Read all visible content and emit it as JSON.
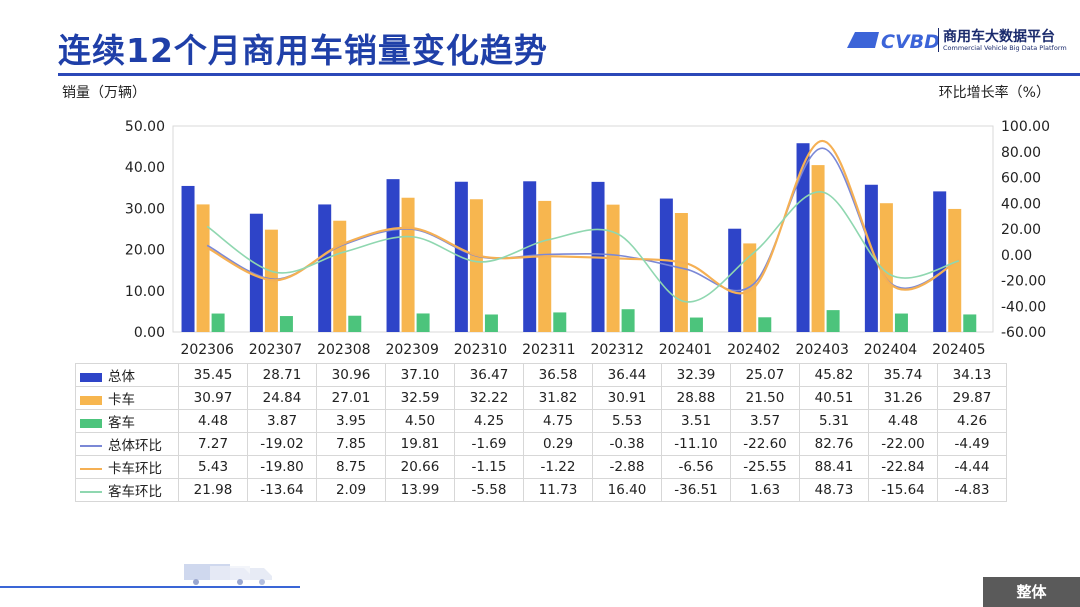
{
  "header": {
    "title": "连续12个月商用车销量变化趋势",
    "logo_text": "商用车大数据平台",
    "logo_sub": "Commercial Vehicle Big Data Platform",
    "logo_mark": "CVBD"
  },
  "footer": {
    "tag": "整体"
  },
  "colors": {
    "total": "#2e44c8",
    "truck": "#f7b64f",
    "bus": "#4cc47c",
    "total_mom": "#7b88d6",
    "truck_mom": "#f5b054",
    "bus_mom": "#8fd7b0"
  },
  "chart_data": {
    "type": "bar",
    "ylabel": "销量（万辆）",
    "y2label": "环比增长率（%）",
    "ylim": [
      0,
      50
    ],
    "y2lim": [
      -60,
      100
    ],
    "yticks": [
      "0.00",
      "10.00",
      "20.00",
      "30.00",
      "40.00",
      "50.00"
    ],
    "y2ticks": [
      "-60.00",
      "-40.00",
      "-20.00",
      "0.00",
      "20.00",
      "40.00",
      "60.00",
      "80.00",
      "100.00"
    ],
    "grid": false,
    "categories": [
      "202306",
      "202307",
      "202308",
      "202309",
      "202310",
      "202311",
      "202312",
      "202401",
      "202402",
      "202403",
      "202404",
      "202405"
    ],
    "series": [
      {
        "name": "总体",
        "kind": "bar",
        "axis": "left",
        "values": [
          35.45,
          28.71,
          30.96,
          37.1,
          36.47,
          36.58,
          36.44,
          32.39,
          25.07,
          45.82,
          35.74,
          34.13
        ],
        "labels": [
          "35.45",
          "28.71",
          "30.96",
          "37.10",
          "36.47",
          "36.58",
          "36.44",
          "32.39",
          "25.07",
          "45.82",
          "35.74",
          "34.13"
        ]
      },
      {
        "name": "卡车",
        "kind": "bar",
        "axis": "left",
        "values": [
          30.97,
          24.84,
          27.01,
          32.59,
          32.22,
          31.82,
          30.91,
          28.88,
          21.5,
          40.51,
          31.26,
          29.87
        ],
        "labels": [
          "30.97",
          "24.84",
          "27.01",
          "32.59",
          "32.22",
          "31.82",
          "30.91",
          "28.88",
          "21.50",
          "40.51",
          "31.26",
          "29.87"
        ]
      },
      {
        "name": "客车",
        "kind": "bar",
        "axis": "left",
        "values": [
          4.48,
          3.87,
          3.95,
          4.5,
          4.25,
          4.75,
          5.53,
          3.51,
          3.57,
          5.31,
          4.48,
          4.26
        ],
        "labels": [
          "4.48",
          "3.87",
          "3.95",
          "4.50",
          "4.25",
          "4.75",
          "5.53",
          "3.51",
          "3.57",
          "5.31",
          "4.48",
          "4.26"
        ]
      },
      {
        "name": "总体环比",
        "kind": "line",
        "axis": "right",
        "values": [
          7.27,
          -19.02,
          7.85,
          19.81,
          -1.69,
          0.29,
          -0.38,
          -11.1,
          -22.6,
          82.76,
          -22.0,
          -4.49
        ],
        "labels": [
          "7.27",
          "-19.02",
          "7.85",
          "19.81",
          "-1.69",
          "0.29",
          "-0.38",
          "-11.10",
          "-22.60",
          "82.76",
          "-22.00",
          "-4.49"
        ]
      },
      {
        "name": "卡车环比",
        "kind": "line",
        "axis": "right",
        "values": [
          5.43,
          -19.8,
          8.75,
          20.66,
          -1.15,
          -1.22,
          -2.88,
          -6.56,
          -25.55,
          88.41,
          -22.84,
          -4.44
        ],
        "labels": [
          "5.43",
          "-19.80",
          "8.75",
          "20.66",
          "-1.15",
          "-1.22",
          "-2.88",
          "-6.56",
          "-25.55",
          "88.41",
          "-22.84",
          "-4.44"
        ]
      },
      {
        "name": "客车环比",
        "kind": "line",
        "axis": "right",
        "values": [
          21.98,
          -13.64,
          2.09,
          13.99,
          -5.58,
          11.73,
          16.4,
          -36.51,
          1.63,
          48.73,
          -15.64,
          -4.83
        ],
        "labels": [
          "21.98",
          "-13.64",
          "2.09",
          "13.99",
          "-5.58",
          "11.73",
          "16.40",
          "-36.51",
          "1.63",
          "48.73",
          "-15.64",
          "-4.83"
        ]
      }
    ]
  }
}
